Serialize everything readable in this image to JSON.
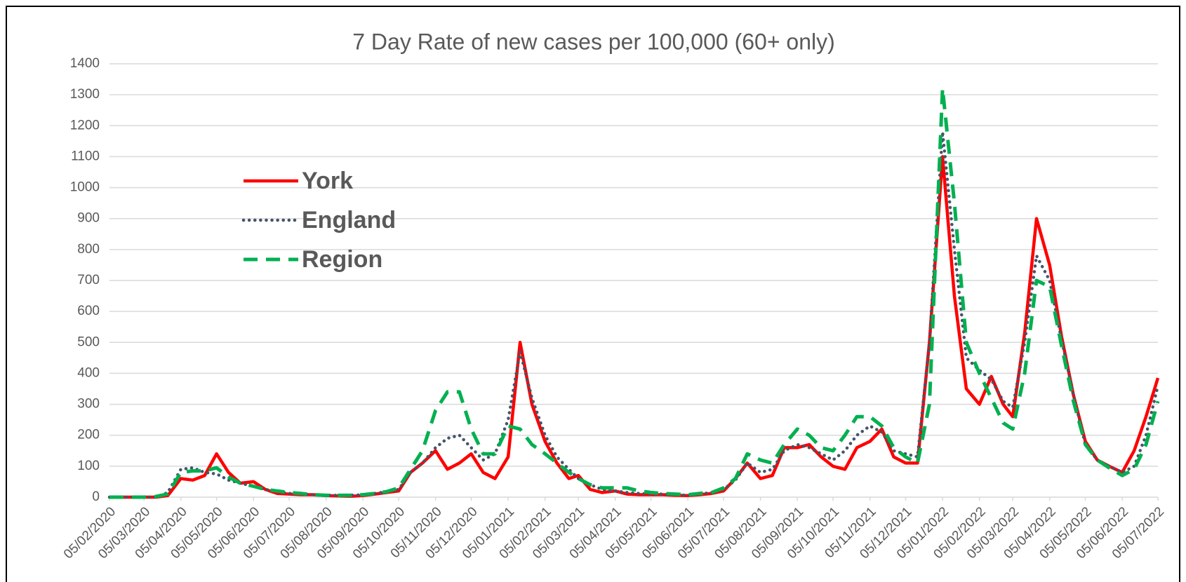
{
  "chart_data": {
    "type": "line",
    "title": "7 Day Rate of new cases per 100,000 (60+ only)",
    "x": [
      "05/02/2020",
      "15/02/2020",
      "25/02/2020",
      "05/03/2020",
      "15/03/2020",
      "25/03/2020",
      "05/04/2020",
      "15/04/2020",
      "25/04/2020",
      "05/05/2020",
      "15/05/2020",
      "25/05/2020",
      "05/06/2020",
      "15/06/2020",
      "25/06/2020",
      "05/07/2020",
      "15/07/2020",
      "25/07/2020",
      "05/08/2020",
      "15/08/2020",
      "25/08/2020",
      "05/09/2020",
      "15/09/2020",
      "25/09/2020",
      "05/10/2020",
      "15/10/2020",
      "25/10/2020",
      "05/11/2020",
      "15/11/2020",
      "25/11/2020",
      "05/12/2020",
      "15/12/2020",
      "25/12/2020",
      "05/01/2021",
      "15/01/2021",
      "25/01/2021",
      "05/02/2021",
      "15/02/2021",
      "25/02/2021",
      "05/03/2021",
      "15/03/2021",
      "25/03/2021",
      "05/04/2021",
      "15/04/2021",
      "25/04/2021",
      "05/05/2021",
      "15/05/2021",
      "25/05/2021",
      "05/06/2021",
      "15/06/2021",
      "25/06/2021",
      "05/07/2021",
      "15/07/2021",
      "25/07/2021",
      "05/08/2021",
      "15/08/2021",
      "25/08/2021",
      "05/09/2021",
      "15/09/2021",
      "25/09/2021",
      "05/10/2021",
      "15/10/2021",
      "25/10/2021",
      "05/11/2021",
      "15/11/2021",
      "25/11/2021",
      "05/12/2021",
      "15/12/2021",
      "25/12/2021",
      "05/01/2022",
      "15/01/2022",
      "25/01/2022",
      "05/02/2022",
      "15/02/2022",
      "25/02/2022",
      "05/03/2022",
      "15/03/2022",
      "25/03/2022",
      "05/04/2022",
      "15/04/2022",
      "25/04/2022",
      "05/05/2022",
      "15/05/2022",
      "25/05/2022",
      "05/06/2022",
      "15/06/2022",
      "25/06/2022",
      "05/07/2022"
    ],
    "series": [
      {
        "name": "York",
        "color": "#ff0000",
        "style": "solid",
        "values": [
          0,
          0,
          0,
          0,
          0,
          5,
          60,
          55,
          70,
          140,
          80,
          45,
          50,
          25,
          12,
          10,
          8,
          8,
          5,
          4,
          3,
          5,
          10,
          15,
          20,
          80,
          110,
          150,
          90,
          110,
          140,
          80,
          60,
          130,
          500,
          300,
          180,
          110,
          60,
          70,
          25,
          15,
          20,
          10,
          8,
          8,
          8,
          6,
          5,
          8,
          12,
          20,
          60,
          110,
          60,
          70,
          160,
          160,
          170,
          130,
          100,
          90,
          160,
          180,
          220,
          130,
          110,
          110,
          500,
          1100,
          650,
          350,
          300,
          390,
          300,
          260,
          530,
          900,
          750,
          520,
          330,
          180,
          120,
          100,
          80,
          150,
          260,
          385
        ]
      },
      {
        "name": "England",
        "color": "#44546a",
        "style": "dotted",
        "values": [
          0,
          0,
          0,
          0,
          0,
          15,
          90,
          95,
          80,
          75,
          55,
          45,
          35,
          25,
          18,
          12,
          10,
          8,
          6,
          6,
          6,
          8,
          12,
          18,
          25,
          80,
          110,
          160,
          190,
          200,
          160,
          120,
          140,
          250,
          470,
          320,
          200,
          130,
          90,
          60,
          40,
          25,
          20,
          15,
          12,
          10,
          10,
          8,
          6,
          10,
          15,
          25,
          55,
          110,
          80,
          90,
          150,
          170,
          160,
          140,
          120,
          150,
          200,
          230,
          210,
          150,
          140,
          130,
          500,
          1180,
          800,
          450,
          410,
          380,
          310,
          290,
          500,
          780,
          700,
          510,
          330,
          170,
          120,
          100,
          80,
          100,
          200,
          360
        ]
      },
      {
        "name": "Region",
        "color": "#00b050",
        "style": "dashed",
        "values": [
          0,
          0,
          0,
          0,
          2,
          10,
          80,
          85,
          85,
          95,
          65,
          45,
          35,
          25,
          20,
          15,
          12,
          8,
          6,
          6,
          6,
          8,
          12,
          18,
          30,
          90,
          150,
          280,
          340,
          340,
          220,
          140,
          140,
          230,
          220,
          170,
          140,
          110,
          80,
          60,
          40,
          30,
          30,
          30,
          20,
          15,
          12,
          10,
          8,
          12,
          15,
          30,
          60,
          140,
          120,
          110,
          170,
          220,
          200,
          160,
          150,
          200,
          260,
          260,
          230,
          160,
          130,
          110,
          300,
          1320,
          950,
          500,
          400,
          320,
          240,
          220,
          400,
          700,
          680,
          490,
          310,
          170,
          120,
          95,
          70,
          90,
          170,
          310
        ]
      }
    ],
    "xlim": [
      "05/02/2020",
      "05/07/2022"
    ],
    "xticks": [
      "05/02/2020",
      "05/03/2020",
      "05/04/2020",
      "05/05/2020",
      "05/06/2020",
      "05/07/2020",
      "05/08/2020",
      "05/09/2020",
      "05/10/2020",
      "05/11/2020",
      "05/12/2020",
      "05/01/2021",
      "05/02/2021",
      "05/03/2021",
      "05/04/2021",
      "05/05/2021",
      "05/06/2021",
      "05/07/2021",
      "05/08/2021",
      "05/09/2021",
      "05/10/2021",
      "05/11/2021",
      "05/12/2021",
      "05/01/2022",
      "05/02/2022",
      "05/03/2022",
      "05/04/2022",
      "05/05/2022",
      "05/06/2022",
      "05/07/2022"
    ],
    "ylim": [
      0,
      1400
    ],
    "yticks": [
      0,
      100,
      200,
      300,
      400,
      500,
      600,
      700,
      800,
      900,
      1000,
      1100,
      1200,
      1300,
      1400
    ],
    "grid": true
  }
}
